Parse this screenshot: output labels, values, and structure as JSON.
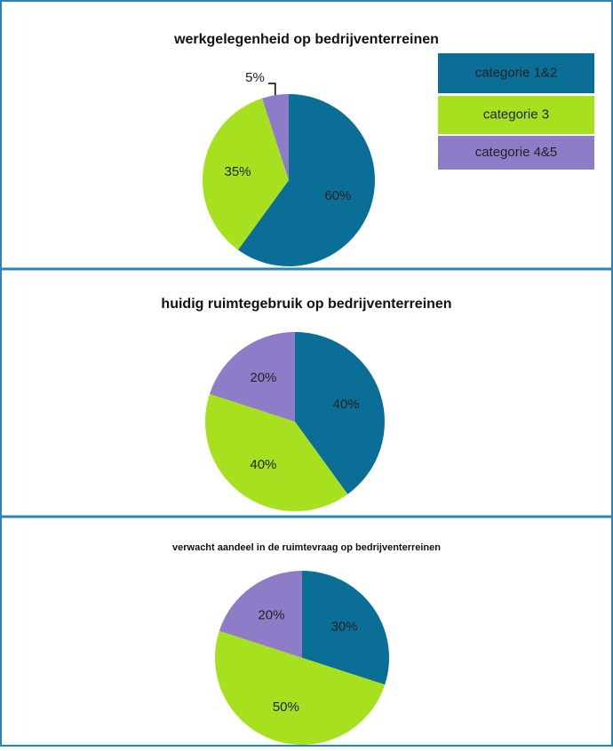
{
  "legend": {
    "labels": [
      "categorie 1&2",
      "categorie 3",
      "categorie 4&5"
    ],
    "colors": [
      "#0b6e96",
      "#a6e01e",
      "#8e7cc9"
    ]
  },
  "chart_data": [
    {
      "type": "pie",
      "title": "werkgelegenheid op bedrijventerreinen",
      "values": [
        60,
        35,
        5
      ],
      "value_labels": [
        "60%",
        "35%",
        "5%"
      ],
      "colors": [
        "#0b6e96",
        "#a6e01e",
        "#8e7cc9"
      ]
    },
    {
      "type": "pie",
      "title": "huidig ruimtegebruik op bedrijventerreinen",
      "values": [
        40,
        40,
        20
      ],
      "value_labels": [
        "40%",
        "40%",
        "20%"
      ],
      "colors": [
        "#0b6e96",
        "#a6e01e",
        "#8e7cc9"
      ]
    },
    {
      "type": "pie",
      "title": "verwacht aandeel in de ruimtevraag op bedrijventerreinen",
      "values": [
        30,
        50,
        20
      ],
      "value_labels": [
        "30%",
        "50%",
        "20%"
      ],
      "colors": [
        "#0b6e96",
        "#a6e01e",
        "#8e7cc9"
      ]
    }
  ]
}
